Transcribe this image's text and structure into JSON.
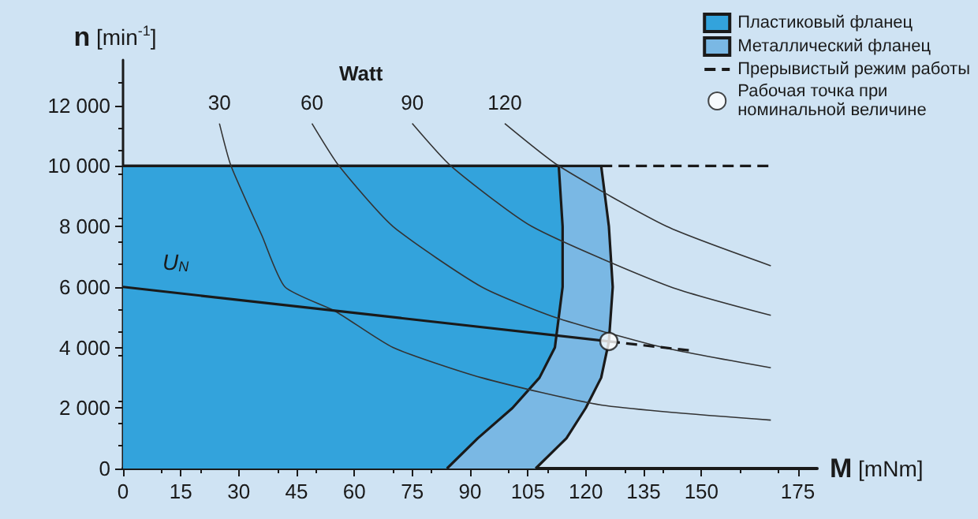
{
  "chart_data": {
    "type": "line",
    "xlabel": "M [mNm]",
    "ylabel": "n [min$^{-1}$]",
    "xlim": [
      0,
      180
    ],
    "ylim": [
      0,
      13500
    ],
    "xticks": [
      0,
      15,
      30,
      45,
      60,
      75,
      90,
      105,
      120,
      135,
      150,
      175
    ],
    "yticks": [
      {
        "value": 0,
        "label": "0"
      },
      {
        "value": 2000,
        "label": "2 000"
      },
      {
        "value": 4000,
        "label": "4 000"
      },
      {
        "value": 6000,
        "label": "6 000"
      },
      {
        "value": 8000,
        "label": "8 000"
      },
      {
        "value": 10000,
        "label": "10 000"
      },
      {
        "value": 12000,
        "label": "12 000"
      }
    ],
    "grid": false,
    "legend": "top right",
    "annotations": [
      "Watt"
    ],
    "series": [
      {
        "name": "Пластиковый фланец",
        "type": "area",
        "color": "#33a3dc",
        "x": [
          0,
          113,
          114,
          114,
          112,
          108,
          101,
          92,
          84
        ],
        "values": [
          10000,
          10000,
          8000,
          6000,
          4000,
          3000,
          2000,
          1000,
          0
        ]
      },
      {
        "name": "Металлический фланец",
        "type": "area",
        "color": "#7ab8e4",
        "x": [
          0,
          124,
          126,
          127,
          126,
          124,
          120,
          115,
          107
        ],
        "values": [
          10000,
          10000,
          8000,
          6000,
          4200,
          3000,
          2000,
          1000,
          0
        ]
      },
      {
        "name": "Прерывистый режим работы",
        "color": "#1a1a1a",
        "line_style": "dashed",
        "x": [
          124,
          168
        ],
        "values": [
          10000,
          10000
        ]
      },
      {
        "name": "30",
        "color": "#333333",
        "x": [
          25,
          28,
          36,
          42,
          55,
          70,
          93,
          124,
          168
        ],
        "values": [
          11400,
          10000,
          7700,
          6000,
          5200,
          4000,
          3000,
          2100,
          1600
        ]
      },
      {
        "name": "60",
        "color": "#333333",
        "x": [
          49,
          56,
          70,
          93,
          112,
          140,
          168
        ],
        "values": [
          11400,
          10000,
          8000,
          6000,
          5000,
          4000,
          3330
        ]
      },
      {
        "name": "90",
        "color": "#333333",
        "x": [
          75,
          85,
          106,
          142,
          168
        ],
        "values": [
          11400,
          10000,
          8000,
          6000,
          5060
        ]
      },
      {
        "name": "120",
        "color": "#333333",
        "x": [
          99,
          113,
          141,
          168
        ],
        "values": [
          11400,
          10000,
          8000,
          6700
        ]
      },
      {
        "name": "U$_{N}$",
        "color": "#1a1a1a",
        "x": [
          0,
          126
        ],
        "values": [
          6000,
          4200
        ]
      },
      {
        "color": "#1a1a1a",
        "line_style": "dashed",
        "x": [
          126,
          147
        ],
        "values": [
          4200,
          3900
        ]
      },
      {
        "name": "Рабочая точка при номинальной величине",
        "type": "scatter",
        "marker": "circle",
        "color": "#ffffff",
        "x": [
          126
        ],
        "values": [
          4200
        ]
      }
    ]
  }
}
